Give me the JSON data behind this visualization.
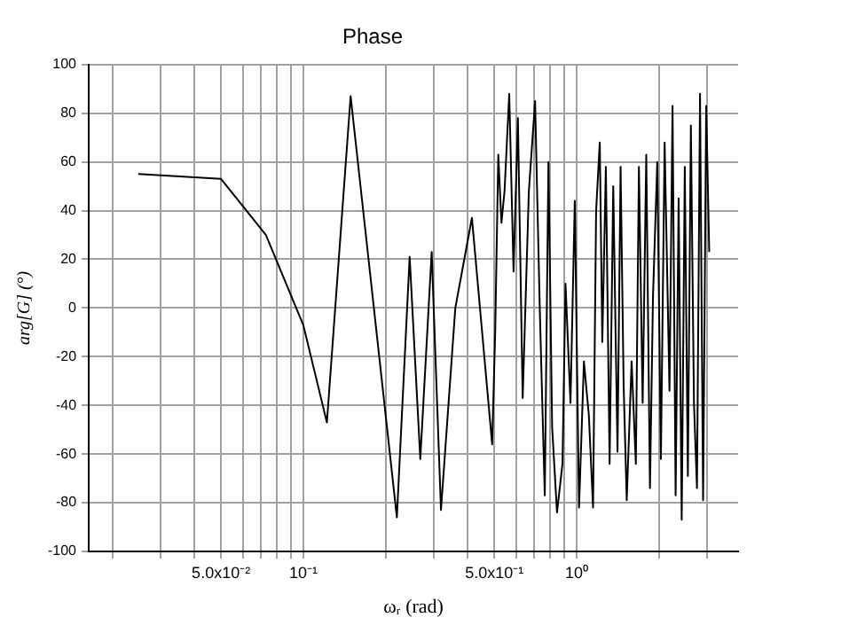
{
  "chart_data": {
    "type": "line",
    "title": "Phase",
    "xlabel": "ωᵣ (rad)",
    "ylabel": "arg[G] (°)",
    "log": "x",
    "grid": true,
    "legend": false,
    "marker": "none",
    "line_style": "solid",
    "xlim": [
      0.0164,
      3.9
    ],
    "xticks": [
      {
        "value": 0.02,
        "label": null
      },
      {
        "value": 0.03,
        "label": null
      },
      {
        "value": 0.04,
        "label": null
      },
      {
        "value": 0.05,
        "label": "5.0x10⁻²"
      },
      {
        "value": 0.06,
        "label": null
      },
      {
        "value": 0.07,
        "label": null
      },
      {
        "value": 0.08,
        "label": null
      },
      {
        "value": 0.09,
        "label": null
      },
      {
        "value": 0.1,
        "label": "10⁻¹"
      },
      {
        "value": 0.2,
        "label": null
      },
      {
        "value": 0.3,
        "label": null
      },
      {
        "value": 0.4,
        "label": null
      },
      {
        "value": 0.5,
        "label": "5.0x10⁻¹"
      },
      {
        "value": 0.6,
        "label": null
      },
      {
        "value": 0.7,
        "label": null
      },
      {
        "value": 0.8,
        "label": null
      },
      {
        "value": 0.9,
        "label": null
      },
      {
        "value": 1,
        "label": "10⁰"
      },
      {
        "value": 2,
        "label": null
      },
      {
        "value": 3,
        "label": null
      }
    ],
    "ylim": [
      -100,
      100
    ],
    "yticks": [
      -100,
      -80,
      -60,
      -40,
      -20,
      0,
      20,
      40,
      60,
      80,
      100
    ],
    "series": [
      {
        "color": "#000000",
        "x": [
          0.0249,
          0.05,
          0.073,
          0.1,
          0.122,
          0.149,
          0.22,
          0.245,
          0.268,
          0.295,
          0.319,
          0.36,
          0.414,
          0.491,
          0.504,
          0.517,
          0.531,
          0.545,
          0.567,
          0.588,
          0.61,
          0.635,
          0.669,
          0.705,
          0.734,
          0.765,
          0.789,
          0.814,
          0.848,
          0.888,
          0.911,
          0.95,
          0.985,
          1.021,
          1.064,
          1.109,
          1.149,
          1.179,
          1.216,
          1.242,
          1.28,
          1.321,
          1.362,
          1.412,
          1.449,
          1.487,
          1.526,
          1.59,
          1.648,
          1.691,
          1.745,
          1.799,
          1.856,
          1.904,
          1.974,
          2.035,
          2.1,
          2.188,
          2.245,
          2.304,
          2.363,
          2.425,
          2.489,
          2.554,
          2.62,
          2.689,
          2.758,
          2.83,
          2.904,
          2.981,
          3.058
        ],
        "values": [
          55,
          53,
          30,
          -7,
          -47,
          87,
          -86,
          21,
          -62,
          23,
          -83,
          0,
          37,
          -56,
          -9,
          63,
          35,
          48,
          88,
          15,
          78,
          -37,
          48,
          85,
          -2,
          -77,
          60,
          -49,
          -84,
          -64,
          10,
          -39,
          44,
          -82,
          -22,
          -44,
          -82,
          40,
          68,
          -14,
          58,
          -64,
          50,
          -59,
          58,
          -32,
          -79,
          -22,
          -64,
          58,
          -39,
          63,
          -74,
          5,
          60,
          -62,
          68,
          -34,
          83,
          -77,
          45,
          -87,
          58,
          -69,
          75,
          -39,
          -74,
          88,
          -79,
          83,
          23
        ]
      }
    ]
  }
}
